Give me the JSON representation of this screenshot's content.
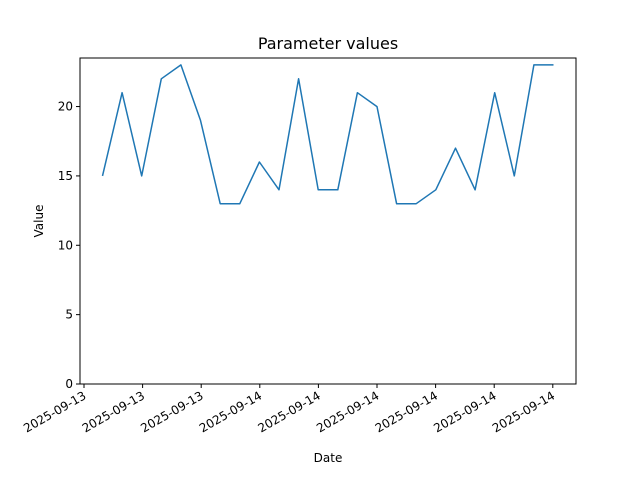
{
  "chart_data": {
    "type": "line",
    "title": "Parameter values",
    "xlabel": "Date",
    "ylabel": "Value",
    "ylim": [
      0,
      23.5
    ],
    "grid": false,
    "legend": "none",
    "line_color": "#1f77b4",
    "yticks": [
      0,
      5,
      10,
      15,
      20
    ],
    "xtick_labels": [
      "2025-09-13",
      "2025-09-13",
      "2025-09-13",
      "2025-09-14",
      "2025-09-14",
      "2025-09-14",
      "2025-09-14",
      "2025-09-14",
      "2025-09-14"
    ],
    "series": [
      {
        "values": [
          15,
          21,
          15,
          22,
          23,
          19,
          13,
          13,
          16,
          14,
          22,
          14,
          14,
          21,
          20,
          13,
          13,
          14,
          17,
          14,
          21,
          15,
          23,
          23
        ]
      }
    ]
  }
}
